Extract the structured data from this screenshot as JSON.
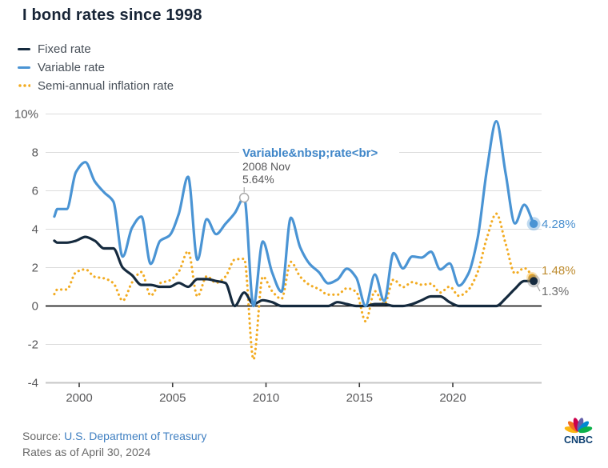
{
  "title": "I bond rates since 1998",
  "legend": {
    "items": [
      {
        "label": "Fixed rate",
        "color": "#152a3e",
        "style": "solid"
      },
      {
        "label": "Variable rate",
        "color": "#4a94d4",
        "style": "solid"
      },
      {
        "label": "Semi-annual inflation rate",
        "color": "#f2ab21",
        "style": "dotted"
      }
    ]
  },
  "footer": {
    "source_prefix": "Source: ",
    "source_link": "U.S. Department of Treasury",
    "as_of": "Rates as of April 30, 2024"
  },
  "logo": {
    "text": "CNBC",
    "text_color": "#0b3e70",
    "peacock_colors": [
      "#fcb711",
      "#f37021",
      "#cc004c",
      "#6460aa",
      "#0089d0",
      "#0db14b"
    ]
  },
  "chart_data": {
    "type": "line",
    "title": "I bond rates since 1998",
    "x_unit": "decimal_year",
    "xlim": [
      1998.67,
      2024.6
    ],
    "ylim": [
      -4,
      10
    ],
    "grid": true,
    "legend_position": "top-left",
    "yticks": [
      {
        "value": 10,
        "label": "10%"
      },
      {
        "value": 8,
        "label": "8"
      },
      {
        "value": 6,
        "label": "6"
      },
      {
        "value": 4,
        "label": "4"
      },
      {
        "value": 2,
        "label": "2"
      },
      {
        "value": 0,
        "label": "0"
      },
      {
        "value": -2,
        "label": "-2"
      },
      {
        "value": -4,
        "label": "-4"
      }
    ],
    "xticks": [
      {
        "value": 2000,
        "label": "2000"
      },
      {
        "value": 2005,
        "label": "2005"
      },
      {
        "value": 2010,
        "label": "2010"
      },
      {
        "value": 2015,
        "label": "2015"
      },
      {
        "value": 2020,
        "label": "2020"
      }
    ],
    "x": [
      1998.67,
      1998.83,
      1999.33,
      1999.83,
      2000.33,
      2000.83,
      2001.33,
      2001.83,
      2002.33,
      2002.83,
      2003.33,
      2003.83,
      2004.33,
      2004.83,
      2005.33,
      2005.83,
      2006.33,
      2006.83,
      2007.33,
      2007.83,
      2008.33,
      2008.83,
      2009.33,
      2009.83,
      2010.33,
      2010.83,
      2011.33,
      2011.83,
      2012.33,
      2012.83,
      2013.33,
      2013.83,
      2014.33,
      2014.83,
      2015.33,
      2015.83,
      2016.33,
      2016.83,
      2017.33,
      2017.83,
      2018.33,
      2018.83,
      2019.33,
      2019.83,
      2020.33,
      2020.83,
      2021.33,
      2021.83,
      2022.33,
      2022.83,
      2023.33,
      2023.83,
      2024.33
    ],
    "series": [
      {
        "name": "Fixed rate",
        "color": "#152a3e",
        "dash": "solid",
        "values": [
          3.4,
          3.3,
          3.3,
          3.4,
          3.6,
          3.4,
          3.0,
          3.0,
          2.0,
          1.6,
          1.1,
          1.1,
          1.0,
          1.0,
          1.2,
          1.0,
          1.4,
          1.4,
          1.3,
          1.2,
          0.0,
          0.7,
          0.1,
          0.3,
          0.2,
          0.0,
          0.0,
          0.0,
          0.0,
          0.0,
          0.0,
          0.2,
          0.1,
          0.0,
          0.0,
          0.1,
          0.1,
          0.0,
          0.0,
          0.1,
          0.3,
          0.5,
          0.5,
          0.2,
          0.0,
          0.0,
          0.0,
          0.0,
          0.0,
          0.4,
          0.9,
          1.3,
          1.3
        ]
      },
      {
        "name": "Variable rate",
        "color": "#4a94d4",
        "dash": "solid",
        "values": [
          4.66,
          5.05,
          5.05,
          6.98,
          7.49,
          6.49,
          5.92,
          5.44,
          2.57,
          4.08,
          4.66,
          2.19,
          3.39,
          3.67,
          4.8,
          6.73,
          2.41,
          4.52,
          3.74,
          4.28,
          4.84,
          5.64,
          0.0,
          3.36,
          1.74,
          0.74,
          4.6,
          3.06,
          2.2,
          1.76,
          1.18,
          1.38,
          1.94,
          1.48,
          0.0,
          1.64,
          0.26,
          2.76,
          1.96,
          2.58,
          2.52,
          2.83,
          1.9,
          2.22,
          1.06,
          1.68,
          3.54,
          7.12,
          9.62,
          6.89,
          4.3,
          5.27,
          4.28
        ]
      },
      {
        "name": "Semi-annual inflation rate",
        "color": "#f2ab21",
        "dash": "dotted",
        "values": [
          0.62,
          0.86,
          0.86,
          1.76,
          1.91,
          1.52,
          1.44,
          1.19,
          0.28,
          1.23,
          1.77,
          0.54,
          1.19,
          1.33,
          1.79,
          2.85,
          0.5,
          1.55,
          1.21,
          1.53,
          2.42,
          2.46,
          -2.78,
          1.53,
          0.77,
          0.37,
          2.3,
          1.53,
          1.1,
          0.88,
          0.59,
          0.59,
          0.92,
          0.74,
          -0.8,
          0.77,
          0.08,
          1.38,
          0.98,
          1.24,
          1.11,
          1.16,
          0.7,
          1.01,
          0.53,
          0.84,
          1.77,
          3.56,
          4.81,
          3.24,
          1.69,
          1.97,
          1.48
        ]
      }
    ],
    "annotation": {
      "series": "Variable rate",
      "x": 2008.83,
      "y": 5.64,
      "title": "Variable&nbsp;rate<br>",
      "line1": "2008 Nov",
      "line2": "5.64%",
      "title_color": "#3f86c8",
      "body_color": "#58585a"
    },
    "end_labels": [
      {
        "series": "Variable rate",
        "text": "4.28%",
        "value": 4.28,
        "color": "#4a90cf"
      },
      {
        "series": "Semi-annual inflation rate",
        "text": "1.48%",
        "value": 1.48,
        "color": "#bd8b2e"
      },
      {
        "series": "Fixed rate",
        "text": "1.3%",
        "value": 1.3,
        "color": "#6e6e6e"
      }
    ],
    "axis_text_color": "#58585a",
    "gridline_color": "#dcdcdc",
    "zero_line_color": "#000000"
  }
}
